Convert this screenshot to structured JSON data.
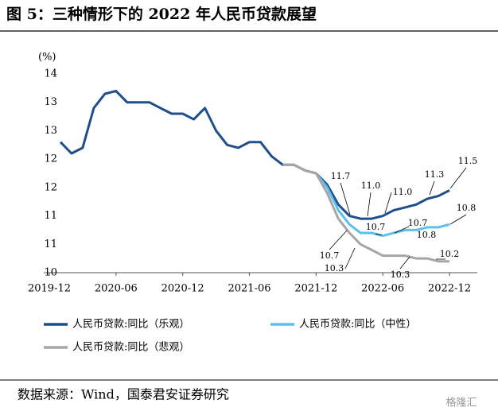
{
  "chart_data": {
    "type": "line",
    "title": "图 5：三种情形下的 2022 年人民币贷款展望",
    "y_unit": "(%)",
    "source": "数据来源：Wind，国泰君安证券研究",
    "watermark": "格隆汇",
    "categories": [
      "2019-12",
      null,
      null,
      null,
      null,
      null,
      "2020-06",
      null,
      null,
      null,
      null,
      null,
      "2020-12",
      null,
      null,
      null,
      null,
      null,
      "2021-06",
      null,
      null,
      null,
      null,
      null,
      "2021-12",
      null,
      null,
      null,
      null,
      null,
      "2022-06",
      null,
      null,
      null,
      null,
      null,
      "2022-12"
    ],
    "ylim": [
      10,
      13.5
    ],
    "yticks": [
      10,
      {
        "value": 10.5,
        "label": "11"
      },
      11,
      {
        "value": 11.5,
        "label": "12"
      },
      12,
      {
        "value": 12.5,
        "label": "13"
      },
      13,
      {
        "value": 13.5,
        "label": "14"
      }
    ],
    "legend": "bottom",
    "series": [
      {
        "name": "人民币贷款:同比（乐观）",
        "color": "#1f4e8c",
        "values": [
          null,
          12.3,
          12.1,
          12.2,
          12.9,
          13.15,
          13.2,
          13.0,
          13.0,
          13.0,
          12.9,
          12.8,
          12.8,
          12.7,
          12.9,
          12.5,
          12.25,
          12.2,
          12.3,
          12.3,
          12.05,
          11.9,
          11.9,
          11.8,
          11.75,
          11.55,
          11.2,
          11.0,
          10.95,
          10.95,
          11.0,
          11.1,
          11.15,
          11.2,
          11.3,
          11.35,
          11.45
        ]
      },
      {
        "name": "人民币贷款:同比（中性）",
        "color": "#5bc0eb",
        "values": [
          null,
          null,
          null,
          null,
          null,
          null,
          null,
          null,
          null,
          null,
          null,
          null,
          null,
          null,
          null,
          null,
          null,
          null,
          null,
          null,
          null,
          null,
          null,
          null,
          11.75,
          11.5,
          11.1,
          10.85,
          10.7,
          10.7,
          10.65,
          10.7,
          10.75,
          10.75,
          10.8,
          10.8,
          10.85
        ]
      },
      {
        "name": "人民币贷款:同比（悲观）",
        "color": "#a6a6a6",
        "values": [
          null,
          null,
          null,
          null,
          null,
          null,
          null,
          null,
          null,
          null,
          null,
          null,
          null,
          null,
          null,
          null,
          null,
          null,
          null,
          null,
          null,
          11.9,
          11.9,
          11.8,
          11.75,
          11.4,
          10.95,
          10.7,
          10.5,
          10.4,
          10.3,
          10.3,
          10.3,
          10.25,
          10.25,
          10.2,
          10.2
        ]
      }
    ],
    "annotations": [
      "11.7",
      "11.0",
      "11.0",
      "11.3",
      "11.5",
      "10.8",
      "10.7",
      "10.7",
      "10.8",
      "10.7",
      "10.3",
      "10.3",
      "10.2"
    ]
  }
}
